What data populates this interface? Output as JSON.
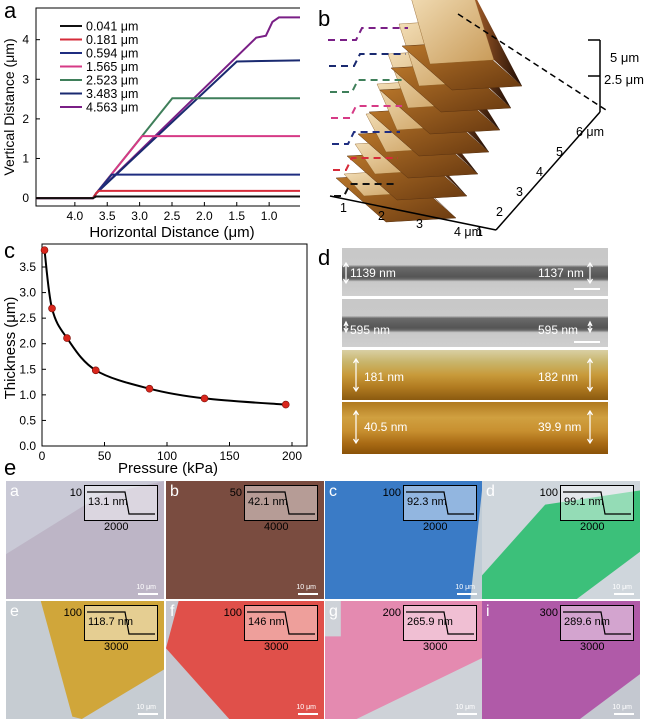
{
  "panel_labels": {
    "a": "a",
    "b": "b",
    "c": "c",
    "d": "d",
    "e": "e"
  },
  "chart_data": [
    {
      "type": "line",
      "panel": "a",
      "ylabel": "Vertical Distance (μm)",
      "xlabel": "Horizontal Distance (μm)",
      "x_ticks": [
        "4.0",
        "3.5",
        "3.0",
        "2.5",
        "2.0",
        "1.5",
        "1.0"
      ],
      "y_ticks": [
        "0",
        "1",
        "2",
        "3",
        "4"
      ],
      "x_reversed": true,
      "xlim": [
        4.6,
        0.4
      ],
      "ylim": [
        -0.2,
        4.8
      ],
      "series": [
        {
          "name": "0.041  μm",
          "color": "#111111",
          "plateau": 0.041,
          "edge": 3.65
        },
        {
          "name": "0.181  μm",
          "color": "#d62b3a",
          "plateau": 0.181,
          "edge": 3.62
        },
        {
          "name": "0.594  μm",
          "color": "#1f2d80",
          "plateau": 0.594,
          "edge": 3.4
        },
        {
          "name": "1.565  μm",
          "color": "#d63a86",
          "plateau": 1.565,
          "edge": 2.8
        },
        {
          "name": "2.523  μm",
          "color": "#3f7f5a",
          "plateau": 2.523,
          "edge": 2.15
        },
        {
          "name": "3.483  μm",
          "color": "#1a2a70",
          "plateau": 3.483,
          "edge": 1.55
        },
        {
          "name": "4.563  μm",
          "color": "#7a1f86",
          "plateau": 4.563,
          "edge": 0.95
        }
      ]
    },
    {
      "type": "scatter",
      "panel": "c",
      "xlabel": "Pressure (kPa)",
      "ylabel": "Thickness (μm)",
      "x_ticks": [
        "0",
        "50",
        "100",
        "150",
        "200"
      ],
      "y_ticks": [
        "0.0",
        "0.5",
        "1.0",
        "1.5",
        "2.0",
        "2.5",
        "3.0",
        "3.5"
      ],
      "xlim": [
        0,
        212
      ],
      "ylim": [
        0,
        3.95
      ],
      "points": [
        {
          "x": 2,
          "y": 3.83
        },
        {
          "x": 8,
          "y": 2.69
        },
        {
          "x": 20,
          "y": 2.11
        },
        {
          "x": 43,
          "y": 1.48
        },
        {
          "x": 86,
          "y": 1.12
        },
        {
          "x": 130,
          "y": 0.93
        },
        {
          "x": 195,
          "y": 0.81
        }
      ],
      "marker_color": "#d9261c"
    }
  ],
  "panel_b": {
    "z_ticks": [
      "5  μm",
      "2.5  μm"
    ],
    "y_ticks": [
      "6 μm",
      "5",
      "4",
      "3",
      "2",
      "1"
    ],
    "x_ticks": [
      "1",
      "2",
      "3",
      "4 μm"
    ],
    "dash_colors": [
      "#7a1f86",
      "#1a2a70",
      "#3f7f5a",
      "#d63a86",
      "#1f2d80",
      "#d62b3a",
      "#111111"
    ]
  },
  "panel_d": {
    "sem": [
      {
        "left": "1139 nm",
        "right": "1137 nm"
      },
      {
        "left": "595 nm",
        "right": "595 nm"
      }
    ],
    "afm": [
      {
        "left": "181 nm",
        "right": "182 nm"
      },
      {
        "left": "40.5 nm",
        "right": "39.9 nm"
      }
    ]
  },
  "panel_e": {
    "scale_label": "10 μm",
    "tiles": [
      {
        "letter": "a",
        "value": "13.1 nm",
        "y_tick": "10",
        "x_tick": "2000",
        "bg": "#c9c9d6",
        "flake": "#bdb5c6"
      },
      {
        "letter": "b",
        "value": "42.1 nm",
        "y_tick": "50",
        "x_tick": "4000",
        "bg": "#8a5a4c",
        "flake": "#7a4c40"
      },
      {
        "letter": "c",
        "value": "92.3 nm",
        "y_tick": "100",
        "x_tick": "2000",
        "bg": "#c0ccd6",
        "flake": "#3a7bc6"
      },
      {
        "letter": "d",
        "value": "99.1 nm",
        "y_tick": "100",
        "x_tick": "2000",
        "bg": "#cfd6dc",
        "flake": "#3cc07a"
      },
      {
        "letter": "e",
        "value": "118.7 nm",
        "y_tick": "100",
        "x_tick": "3000",
        "bg": "#c6ccd2",
        "flake": "#d0a63a"
      },
      {
        "letter": "f",
        "value": "146 nm",
        "y_tick": "100",
        "x_tick": "3000",
        "bg": "#c6c7cf",
        "flake": "#e0504a"
      },
      {
        "letter": "g",
        "value": "265.9 nm",
        "y_tick": "200",
        "x_tick": "3000",
        "bg": "#ced2d8",
        "flake": "#e48ab0"
      },
      {
        "letter": "i",
        "value": "289.6 nm",
        "y_tick": "300",
        "x_tick": "3000",
        "bg": "#c4c8d0",
        "flake": "#b05aa8"
      }
    ]
  }
}
